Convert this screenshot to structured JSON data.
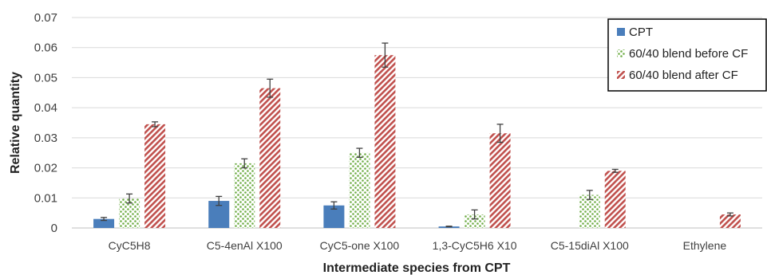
{
  "chart_data": {
    "type": "bar",
    "xlabel": "Intermediate species from CPT",
    "ylabel": "Relative quantity",
    "ylim": [
      0,
      0.07
    ],
    "yticks": [
      {
        "value": 0,
        "label": "0"
      },
      {
        "value": 0.01,
        "label": "0.01"
      },
      {
        "value": 0.02,
        "label": "0.02"
      },
      {
        "value": 0.03,
        "label": "0.03"
      },
      {
        "value": 0.04,
        "label": "0.04"
      },
      {
        "value": 0.05,
        "label": "0.05"
      },
      {
        "value": 0.06,
        "label": "0.06"
      },
      {
        "value": 0.07,
        "label": "0.07"
      }
    ],
    "grid": true,
    "legend_position": "top-right",
    "categories": [
      "CyC5H8",
      "C5-4enAl X100",
      "CyC5-one X100",
      "1,3-CyC5H6 X10",
      "C5-15diAl X100",
      "Ethylene"
    ],
    "series": [
      {
        "name": "CPT",
        "color": "#4a7ebb",
        "pattern": "solid",
        "values": [
          0.003,
          0.009,
          0.0075,
          0.0005,
          null,
          null
        ],
        "errors": [
          0.0005,
          0.0015,
          0.0012,
          0.0001,
          null,
          null
        ]
      },
      {
        "name": "60/40 blend before CF",
        "color": "#70ad47",
        "pattern": "dots",
        "values": [
          0.0098,
          0.0215,
          0.025,
          0.0045,
          0.011,
          null
        ],
        "errors": [
          0.0015,
          0.0015,
          0.0015,
          0.0015,
          0.0015,
          null
        ]
      },
      {
        "name": "60/40 blend after CF",
        "color": "#c0504d",
        "pattern": "hatch",
        "values": [
          0.0345,
          0.0465,
          0.0575,
          0.0315,
          0.019,
          0.0045
        ],
        "errors": [
          0.0008,
          0.003,
          0.004,
          0.003,
          0.0005,
          0.0005
        ]
      }
    ]
  }
}
